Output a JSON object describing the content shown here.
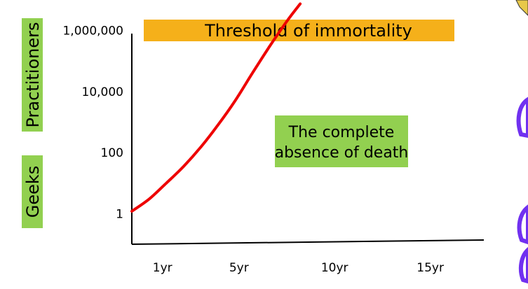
{
  "colors": {
    "series": "#ee0000",
    "band": "#f5b01a",
    "label_bg": "#92d050",
    "axis": "#000000",
    "decor_purple": "#7030f0"
  },
  "side_labels": {
    "upper": "Practitioners",
    "lower": "Geeks"
  },
  "chart_data": {
    "type": "line",
    "title": "",
    "xlabel": "",
    "ylabel": "",
    "yscale": "log",
    "ylim": [
      0.1,
      10000000
    ],
    "xlim": [
      -0.6,
      17.8
    ],
    "grid": false,
    "legend": "none",
    "x_ticks": [
      {
        "value": 1,
        "label": "1yr"
      },
      {
        "value": 5,
        "label": "5yr"
      },
      {
        "value": 10,
        "label": "10yr"
      },
      {
        "value": 15,
        "label": "15yr"
      }
    ],
    "y_ticks": [
      {
        "value": 1,
        "label": "1"
      },
      {
        "value": 100,
        "label": "100"
      },
      {
        "value": 10000,
        "label": "10,000"
      },
      {
        "value": 1000000,
        "label": "1,000,000"
      }
    ],
    "series": [
      {
        "x": [
          -0.6,
          0.3,
          1.2,
          2.1,
          3.0,
          3.9,
          4.8,
          5.7,
          6.6,
          7.5,
          8.2
        ],
        "y": [
          1.2,
          3.0,
          10,
          35,
          150,
          800,
          5000,
          40000,
          300000,
          2000000,
          7500000
        ]
      }
    ],
    "annotations": [
      {
        "type": "band",
        "label": "Threshold of immortality"
      },
      {
        "type": "box",
        "lines": [
          "The complete",
          "absence of death"
        ]
      }
    ]
  }
}
